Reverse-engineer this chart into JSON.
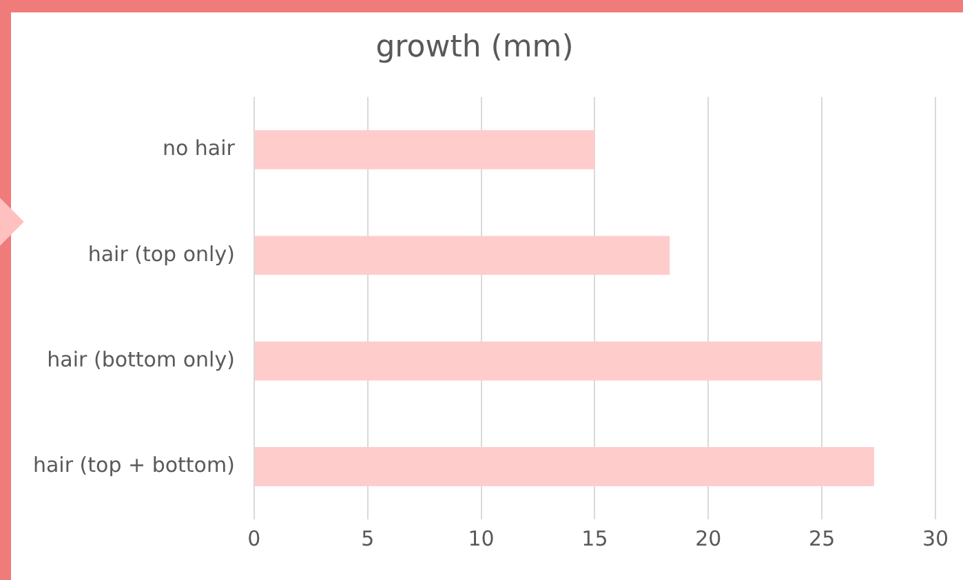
{
  "chart_data": {
    "type": "bar",
    "orientation": "horizontal",
    "title": "growth (mm)",
    "categories": [
      "no hair",
      "hair (top only)",
      "hair (bottom only)",
      "hair (top + bottom)"
    ],
    "values": [
      15,
      18.3,
      25,
      27.3
    ],
    "color": "#ffcccc",
    "xlim": [
      0,
      30
    ],
    "xticks": [
      0,
      5,
      10,
      15,
      20,
      25,
      30
    ],
    "grid": "x",
    "legend": false
  }
}
